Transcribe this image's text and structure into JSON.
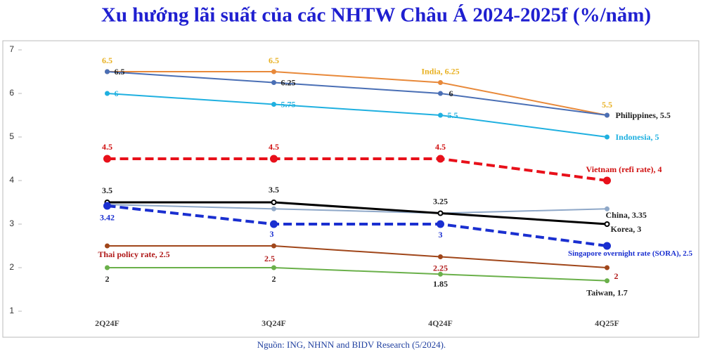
{
  "chart_data": {
    "type": "line",
    "title": "Xu hướng lãi suất của các NHTW Châu Á 2024-2025f (%/năm)",
    "source": "Nguồn: ING, NHNN and BIDV Research (5/2024).",
    "categories": [
      "2Q24F",
      "3Q24F",
      "4Q24F",
      "4Q25F"
    ],
    "ylim": [
      1,
      7
    ],
    "yticks": [
      1,
      2,
      3,
      4,
      5,
      6,
      7
    ],
    "grid": false,
    "series": [
      {
        "color": "#e8893a",
        "label_color": "#e8b020",
        "dashed": false,
        "values": [
          6.5,
          6.5,
          6.25,
          5.5
        ],
        "value_labels": [
          "6.5",
          "6.5",
          "India, 6.25",
          "5.5"
        ]
      },
      {
        "color": "#4a6fb5",
        "label_color": "#222222",
        "dashed": false,
        "values": [
          6.5,
          6.25,
          6,
          5.5
        ],
        "value_labels": [
          "6.5",
          "6.25",
          "6",
          "Philippines, 5.5"
        ]
      },
      {
        "color": "#1fb0e0",
        "label_color": "#1fb0e0",
        "dashed": false,
        "values": [
          6,
          5.75,
          5.5,
          5
        ],
        "value_labels": [
          "6",
          "5.75",
          "5.5",
          "Indonesia, 5"
        ]
      },
      {
        "color": "#e8101a",
        "label_color": "#d01010",
        "dashed": true,
        "values": [
          4.5,
          4.5,
          4.5,
          4
        ],
        "value_labels": [
          "4.5",
          "4.5",
          "4.5",
          "Vietnam (refi rate), 4"
        ]
      },
      {
        "color": "#8fa8c8",
        "label_color": "#222222",
        "dashed": false,
        "values": [
          3.45,
          3.35,
          3.25,
          3.35
        ],
        "value_labels": [
          null,
          null,
          null,
          "China, 3.35"
        ]
      },
      {
        "color": "#000000",
        "label_color": "#222222",
        "dashed": false,
        "values": [
          3.5,
          3.5,
          3.25,
          3
        ],
        "value_labels": [
          "3.5",
          "3.5",
          "3.25",
          "Korea, 3"
        ]
      },
      {
        "color": "#1a2fd0",
        "label_color": "#1a2fd0",
        "dashed": true,
        "values": [
          3.42,
          3,
          3,
          2.5
        ],
        "value_labels": [
          "3.42",
          "3",
          "3",
          "Singapore overnight rate (SORA), 2.5"
        ]
      },
      {
        "color": "#a0461a",
        "label_color": "#b01818",
        "dashed": false,
        "values": [
          2.5,
          2.5,
          2.25,
          2
        ],
        "value_labels": [
          "Thai policy rate, 2.5",
          "2.5",
          "2.25",
          "2"
        ]
      },
      {
        "color": "#6ab04a",
        "label_color": "#222222",
        "dashed": false,
        "values": [
          2,
          2,
          1.85,
          1.7
        ],
        "value_labels": [
          "2",
          "2",
          "1.85",
          "Taiwan, 1.7"
        ]
      }
    ]
  }
}
